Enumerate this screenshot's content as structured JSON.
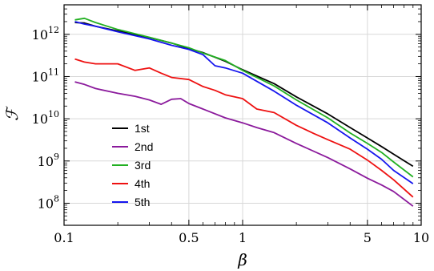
{
  "chart_data": {
    "type": "line",
    "xlabel": "β",
    "ylabel": "ℱ",
    "x_scale": "log",
    "y_scale": "log",
    "xlim": [
      0.1,
      10
    ],
    "ylim": [
      30000000.0,
      5000000000000.0
    ],
    "grid": true,
    "legend_position": "bottom-left",
    "x_ticks": [
      {
        "value": 0.1,
        "label": "0.1"
      },
      {
        "value": 0.5,
        "label": "0.5"
      },
      {
        "value": 1,
        "label": "1"
      },
      {
        "value": 5,
        "label": "5"
      },
      {
        "value": 10,
        "label": "10"
      }
    ],
    "y_ticks": [
      {
        "value": 100000000.0,
        "base": "10",
        "exp": "8"
      },
      {
        "value": 1000000000.0,
        "base": "10",
        "exp": "9"
      },
      {
        "value": 10000000000.0,
        "base": "10",
        "exp": "10"
      },
      {
        "value": 100000000000.0,
        "base": "10",
        "exp": "11"
      },
      {
        "value": 1000000000000.0,
        "base": "10",
        "exp": "12"
      }
    ],
    "series": [
      {
        "name": "1st",
        "color": "#000000",
        "points": [
          [
            0.115,
            1900000000000.0
          ],
          [
            0.13,
            1850000000000.0
          ],
          [
            0.15,
            1550000000000.0
          ],
          [
            0.2,
            1200000000000.0
          ],
          [
            0.3,
            840000000000.0
          ],
          [
            0.4,
            620000000000.0
          ],
          [
            0.5,
            460000000000.0
          ],
          [
            0.6,
            370000000000.0
          ],
          [
            0.8,
            230000000000.0
          ],
          [
            1,
            145000000000.0
          ],
          [
            1.5,
            68000000000.0
          ],
          [
            2,
            33000000000.0
          ],
          [
            3,
            13000000000.0
          ],
          [
            4,
            6200000000.0
          ],
          [
            5,
            3500000000.0
          ],
          [
            6,
            2200000000.0
          ],
          [
            7,
            1450000000.0
          ],
          [
            9,
            750000000.0
          ]
        ]
      },
      {
        "name": "2nd",
        "color": "#8b1a9c",
        "points": [
          [
            0.115,
            75000000000.0
          ],
          [
            0.13,
            65000000000.0
          ],
          [
            0.15,
            52000000000.0
          ],
          [
            0.2,
            40000000000.0
          ],
          [
            0.25,
            34000000000.0
          ],
          [
            0.3,
            28000000000.0
          ],
          [
            0.35,
            22000000000.0
          ],
          [
            0.4,
            29000000000.0
          ],
          [
            0.45,
            30000000000.0
          ],
          [
            0.5,
            23000000000.0
          ],
          [
            0.6,
            17000000000.0
          ],
          [
            0.8,
            10500000000.0
          ],
          [
            1,
            8000000000.0
          ],
          [
            1.2,
            6200000000.0
          ],
          [
            1.5,
            4700000000.0
          ],
          [
            2,
            2600000000.0
          ],
          [
            3,
            1200000000.0
          ],
          [
            4,
            650000000.0
          ],
          [
            5,
            390000000.0
          ],
          [
            6,
            270000000.0
          ],
          [
            7,
            190000000.0
          ],
          [
            9,
            85000000.0
          ]
        ]
      },
      {
        "name": "3rd",
        "color": "#22b022",
        "points": [
          [
            0.115,
            2200000000000.0
          ],
          [
            0.13,
            2400000000000.0
          ],
          [
            0.15,
            1900000000000.0
          ],
          [
            0.2,
            1300000000000.0
          ],
          [
            0.3,
            850000000000.0
          ],
          [
            0.4,
            620000000000.0
          ],
          [
            0.5,
            480000000000.0
          ],
          [
            0.6,
            360000000000.0
          ],
          [
            0.8,
            240000000000.0
          ],
          [
            1,
            140000000000.0
          ],
          [
            1.5,
            60000000000.0
          ],
          [
            2,
            28000000000.0
          ],
          [
            3,
            10500000000.0
          ],
          [
            4,
            4600000000.0
          ],
          [
            5,
            2600000000.0
          ],
          [
            6,
            1600000000.0
          ],
          [
            7,
            950000000.0
          ],
          [
            9,
            420000000.0
          ]
        ]
      },
      {
        "name": "4th",
        "color": "#ee1111",
        "points": [
          [
            0.115,
            260000000000.0
          ],
          [
            0.13,
            220000000000.0
          ],
          [
            0.15,
            200000000000.0
          ],
          [
            0.2,
            200000000000.0
          ],
          [
            0.25,
            140000000000.0
          ],
          [
            0.3,
            160000000000.0
          ],
          [
            0.35,
            120000000000.0
          ],
          [
            0.4,
            95000000000.0
          ],
          [
            0.5,
            85000000000.0
          ],
          [
            0.6,
            58000000000.0
          ],
          [
            0.7,
            47000000000.0
          ],
          [
            0.8,
            37000000000.0
          ],
          [
            1,
            30000000000.0
          ],
          [
            1.2,
            17000000000.0
          ],
          [
            1.5,
            14000000000.0
          ],
          [
            2,
            7000000000.0
          ],
          [
            2.5,
            4500000000.0
          ],
          [
            3,
            3200000000.0
          ],
          [
            4,
            1900000000.0
          ],
          [
            5,
            1050000000.0
          ],
          [
            6,
            600000000.0
          ],
          [
            7,
            360000000.0
          ],
          [
            9,
            140000000.0
          ]
        ]
      },
      {
        "name": "5th",
        "color": "#1515ee",
        "points": [
          [
            0.115,
            2000000000000.0
          ],
          [
            0.13,
            1750000000000.0
          ],
          [
            0.15,
            1550000000000.0
          ],
          [
            0.2,
            1150000000000.0
          ],
          [
            0.3,
            780000000000.0
          ],
          [
            0.4,
            550000000000.0
          ],
          [
            0.5,
            440000000000.0
          ],
          [
            0.6,
            330000000000.0
          ],
          [
            0.7,
            180000000000.0
          ],
          [
            0.8,
            160000000000.0
          ],
          [
            1,
            120000000000.0
          ],
          [
            1.5,
            45000000000.0
          ],
          [
            2,
            21000000000.0
          ],
          [
            3,
            8000000000.0
          ],
          [
            4,
            3500000000.0
          ],
          [
            5,
            1900000000.0
          ],
          [
            6,
            1100000000.0
          ],
          [
            7,
            600000000.0
          ],
          [
            9,
            290000000.0
          ]
        ]
      }
    ]
  }
}
